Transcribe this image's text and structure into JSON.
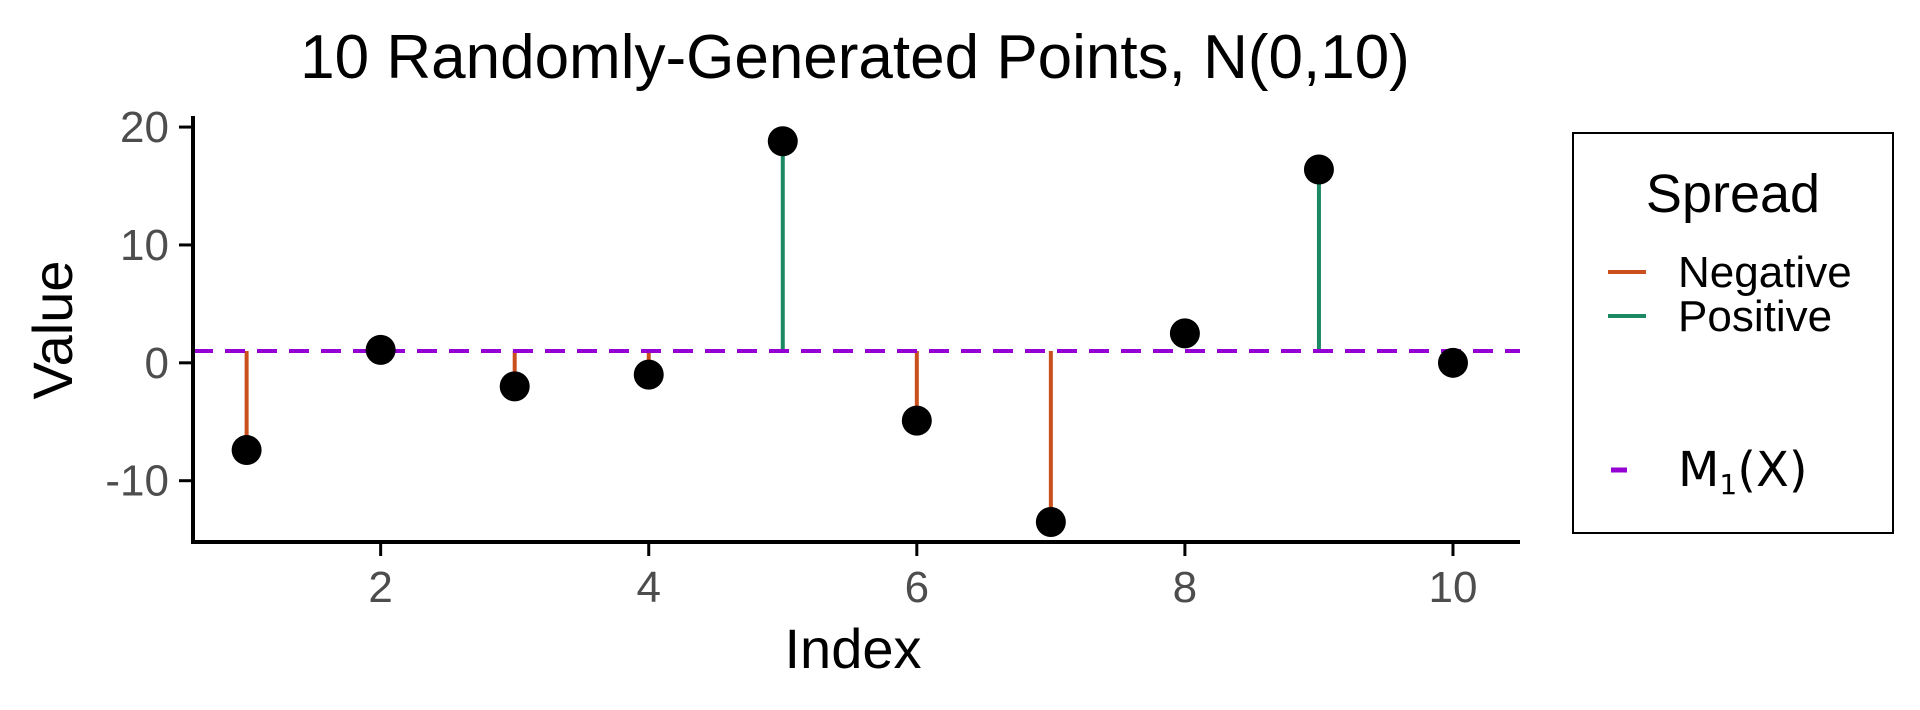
{
  "chart_data": {
    "type": "scatter",
    "title": "10 Randomly-Generated Points, N(0,10)",
    "xlabel": "Index",
    "ylabel": "Value",
    "xlim": [
      0.6,
      10.5
    ],
    "ylim": [
      -15.2,
      20.6
    ],
    "xticks": [
      2,
      4,
      6,
      8,
      10
    ],
    "yticks": [
      -10,
      0,
      10,
      20
    ],
    "x": [
      1,
      2,
      3,
      4,
      5,
      6,
      7,
      8,
      9,
      10
    ],
    "y": [
      -7.4,
      1.1,
      -2.0,
      -1.0,
      18.8,
      -4.9,
      -13.5,
      2.5,
      16.4,
      0.0
    ],
    "reference_line": {
      "value": 1.0,
      "style": "dashed",
      "color": "#9400d3"
    },
    "segments": [
      {
        "x": 1,
        "spread": "Negative"
      },
      {
        "x": 3,
        "spread": "Negative"
      },
      {
        "x": 4,
        "spread": "Negative"
      },
      {
        "x": 5,
        "spread": "Positive"
      },
      {
        "x": 6,
        "spread": "Negative"
      },
      {
        "x": 7,
        "spread": "Negative"
      },
      {
        "x": 9,
        "spread": "Positive"
      }
    ],
    "grid": false,
    "legend": {
      "title": "Spread",
      "placement": "right",
      "entries": [
        {
          "label": "Negative",
          "color": "#c9501c",
          "style": "solid"
        },
        {
          "label": "Positive",
          "color": "#1b8a63",
          "style": "solid"
        }
      ],
      "line_entry": {
        "label_main": "M",
        "label_subscript": "1",
        "label_suffix": "(X)",
        "color": "#9400d3",
        "style": "dashed"
      }
    },
    "colors": {
      "Negative": "#c9501c",
      "Positive": "#1b8a63",
      "points": "#000000",
      "reference": "#9400d3"
    }
  }
}
